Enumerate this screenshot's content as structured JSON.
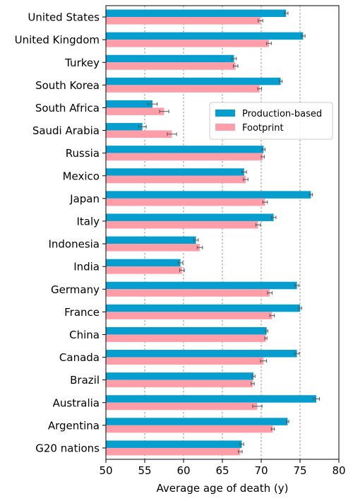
{
  "chart_data": {
    "type": "bar",
    "orientation": "horizontal",
    "categories": [
      "United States",
      "United Kingdom",
      "Turkey",
      "South Korea",
      "South Africa",
      "Saudi Arabia",
      "Russia",
      "Mexico",
      "Japan",
      "Italy",
      "Indonesia",
      "India",
      "Germany",
      "France",
      "China",
      "Canada",
      "Brazil",
      "Australia",
      "Argentina",
      "G20 nations"
    ],
    "series": [
      {
        "name": "Production-based",
        "color": "#069ecf",
        "values": [
          73.2,
          75.4,
          66.5,
          72.5,
          56.0,
          54.7,
          70.3,
          67.8,
          76.4,
          71.6,
          61.6,
          59.6,
          74.6,
          75.0,
          70.7,
          74.6,
          69.0,
          77.1,
          73.4,
          67.5
        ],
        "errors": [
          0.25,
          0.25,
          0.3,
          0.2,
          0.6,
          0.5,
          0.2,
          0.3,
          0.2,
          0.3,
          0.3,
          0.3,
          0.25,
          0.2,
          0.15,
          0.3,
          0.2,
          0.4,
          0.15,
          0.25
        ]
      },
      {
        "name": "Footprint",
        "color": "#ff9ea9",
        "values": [
          69.9,
          71.0,
          66.7,
          69.8,
          57.5,
          58.5,
          70.2,
          68.0,
          70.5,
          69.6,
          62.1,
          59.8,
          71.1,
          71.4,
          70.6,
          70.3,
          68.9,
          69.5,
          71.5,
          67.3
        ],
        "errors": [
          0.3,
          0.3,
          0.3,
          0.25,
          0.6,
          0.6,
          0.2,
          0.3,
          0.3,
          0.3,
          0.35,
          0.3,
          0.3,
          0.3,
          0.15,
          0.4,
          0.2,
          0.6,
          0.2,
          0.25
        ]
      }
    ],
    "xlabel": "Average age of death (y)",
    "xlim": [
      50,
      80
    ],
    "xticks": [
      50,
      55,
      60,
      65,
      70,
      75,
      80
    ],
    "grid": "x-dashed",
    "legend": "upper-right-center"
  }
}
